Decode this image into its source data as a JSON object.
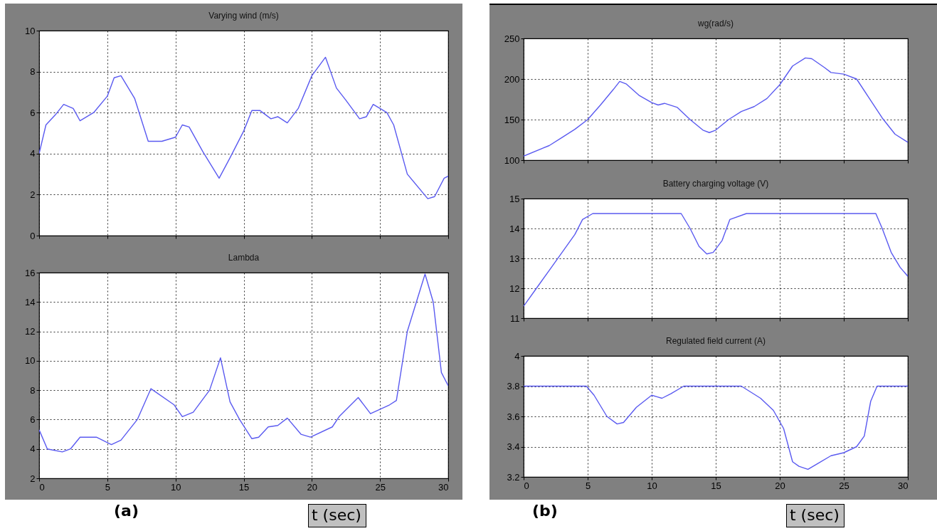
{
  "chart_data": [
    {
      "type": "line",
      "title": "Varying wind (m/s)",
      "xlim": [
        0,
        30
      ],
      "xticks": [
        0,
        5,
        10,
        15,
        20,
        25,
        30
      ],
      "ylim": [
        0,
        10
      ],
      "yticks": [
        0,
        2,
        4,
        6,
        8,
        10
      ],
      "grid": true,
      "tick_labels": "y",
      "line_style": "solid",
      "series": [
        {
          "color": "#5a5af0",
          "x": [
            0,
            0.5,
            1.2,
            1.8,
            2.5,
            3,
            4,
            5,
            5.5,
            6,
            7,
            8,
            9,
            10,
            10.5,
            11,
            12,
            13.2,
            14,
            15,
            15.6,
            16.2,
            17,
            17.5,
            18.2,
            19,
            20,
            21,
            21.8,
            22.5,
            23.5,
            24,
            24.5,
            25.5,
            26,
            27,
            28.5,
            29,
            29.7,
            30
          ],
          "values": [
            4.0,
            5.4,
            5.9,
            6.4,
            6.2,
            5.6,
            6.0,
            6.8,
            7.7,
            7.8,
            6.7,
            4.6,
            4.6,
            4.8,
            5.4,
            5.3,
            4.1,
            2.8,
            3.8,
            5.1,
            6.1,
            6.1,
            5.7,
            5.8,
            5.5,
            6.2,
            7.8,
            8.7,
            7.2,
            6.6,
            5.7,
            5.8,
            6.4,
            6.0,
            5.4,
            3.0,
            1.8,
            1.9,
            2.8,
            2.9
          ]
        }
      ]
    },
    {
      "type": "line",
      "title": "Lambda",
      "xlabel": "t (sec)",
      "annotations": [
        "(a)"
      ],
      "xlim": [
        0,
        30
      ],
      "xticks": [
        0,
        5,
        10,
        15,
        20,
        25,
        30
      ],
      "ylim": [
        2,
        16
      ],
      "yticks": [
        2,
        4,
        6,
        8,
        10,
        12,
        14,
        16
      ],
      "grid": true,
      "line_style": "solid",
      "series": [
        {
          "color": "#5a5af0",
          "x": [
            0,
            0.6,
            1.7,
            2.3,
            3,
            4.2,
            5.3,
            6,
            7.2,
            8.2,
            9.9,
            10.5,
            11.3,
            12.5,
            13.3,
            14,
            14.7,
            15.6,
            16.1,
            16.8,
            17.5,
            18.2,
            19.2,
            19.9,
            21.5,
            22,
            23.4,
            24.3,
            25.7,
            26.2,
            27,
            28.3,
            28.9,
            29.5,
            30
          ],
          "values": [
            5.3,
            4.0,
            3.8,
            4.0,
            4.8,
            4.8,
            4.3,
            4.6,
            6.0,
            8.1,
            7.0,
            6.2,
            6.5,
            8.0,
            10.2,
            7.2,
            6.0,
            4.7,
            4.8,
            5.5,
            5.6,
            6.1,
            5.0,
            4.8,
            5.5,
            6.2,
            7.5,
            6.4,
            7.0,
            7.3,
            12.0,
            15.9,
            14.0,
            9.2,
            8.3
          ]
        }
      ]
    },
    {
      "type": "line",
      "title": "wg(rad/s)",
      "xlim": [
        0,
        30
      ],
      "xticks": [
        0,
        5,
        10,
        15,
        20,
        25,
        30
      ],
      "ylim": [
        100,
        250
      ],
      "yticks": [
        100,
        150,
        200,
        250
      ],
      "grid": true,
      "tick_labels": "y",
      "line_style": "solid",
      "series": [
        {
          "color": "#5a5af0",
          "x": [
            0,
            2,
            3,
            4,
            5,
            6,
            7,
            7.5,
            8,
            9,
            10,
            10.5,
            11,
            12,
            13,
            14,
            14.5,
            15,
            16,
            17,
            18,
            19,
            20,
            21,
            22,
            22.5,
            23.5,
            24,
            25,
            26,
            27,
            28,
            29,
            30
          ],
          "values": [
            105,
            118,
            128,
            138,
            150,
            168,
            187,
            197,
            194,
            180,
            171,
            168,
            170,
            165,
            150,
            137,
            134,
            137,
            150,
            160,
            166,
            176,
            193,
            216,
            226,
            225,
            214,
            208,
            206,
            200,
            176,
            152,
            132,
            122
          ]
        }
      ]
    },
    {
      "type": "line",
      "title": "Battery charging voltage (V)",
      "xlim": [
        0,
        30
      ],
      "xticks": [
        0,
        5,
        10,
        15,
        20,
        25,
        30
      ],
      "ylim": [
        11,
        15
      ],
      "yticks": [
        11,
        12,
        13,
        14,
        15
      ],
      "grid": true,
      "tick_labels": "y",
      "line_style": "solid",
      "series": [
        {
          "color": "#5a5af0",
          "x": [
            0,
            1,
            2,
            3,
            4,
            4.6,
            5.4,
            12.3,
            13,
            13.7,
            14.3,
            14.8,
            15.5,
            16.1,
            17.4,
            27.5,
            28,
            28.7,
            29.4,
            30
          ],
          "values": [
            11.4,
            12.0,
            12.6,
            13.2,
            13.8,
            14.3,
            14.5,
            14.5,
            14.0,
            13.4,
            13.15,
            13.2,
            13.6,
            14.3,
            14.5,
            14.5,
            14.0,
            13.2,
            12.7,
            12.4
          ]
        }
      ]
    },
    {
      "type": "line",
      "title": "Regulated field current (A)",
      "xlabel": "t (sec)",
      "annotations": [
        "(b)"
      ],
      "xlim": [
        0,
        30
      ],
      "xticks": [
        0,
        5,
        10,
        15,
        20,
        25,
        30
      ],
      "ylim": [
        3.2,
        4
      ],
      "yticks": [
        3.2,
        3.4,
        3.6,
        3.8,
        4
      ],
      "grid": true,
      "line_style": "solid",
      "series": [
        {
          "color": "#5a5af0",
          "x": [
            0,
            4.9,
            5.5,
            6.5,
            7.3,
            7.8,
            8.8,
            10,
            10.4,
            10.8,
            11.5,
            12.5,
            17,
            18.5,
            19.5,
            20.3,
            21,
            21.5,
            22.2,
            23,
            24,
            25,
            26,
            26.6,
            27.1,
            27.6,
            30
          ],
          "values": [
            3.8,
            3.8,
            3.74,
            3.6,
            3.55,
            3.56,
            3.66,
            3.74,
            3.73,
            3.72,
            3.75,
            3.8,
            3.8,
            3.72,
            3.64,
            3.52,
            3.3,
            3.27,
            3.25,
            3.29,
            3.34,
            3.36,
            3.4,
            3.47,
            3.7,
            3.8,
            3.8
          ]
        }
      ]
    }
  ]
}
